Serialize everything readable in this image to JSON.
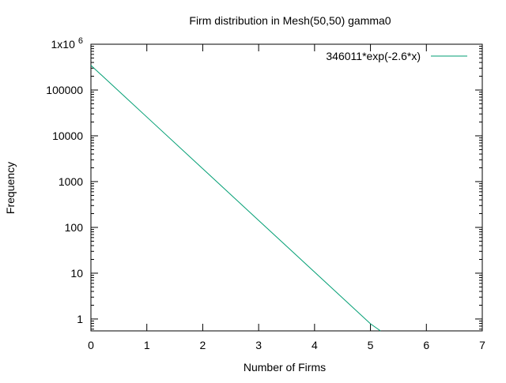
{
  "chart_data": {
    "type": "line",
    "title": "Firm distribution in Mesh(50,50) gamma0",
    "xlabel": "Number of Firms",
    "ylabel": "Frequency",
    "xscale": "linear",
    "yscale": "log",
    "xlim": [
      0,
      7
    ],
    "ylim": [
      0.55,
      1000000
    ],
    "x_ticks": [
      {
        "value": 0,
        "label": "0"
      },
      {
        "value": 1,
        "label": "1"
      },
      {
        "value": 2,
        "label": "2"
      },
      {
        "value": 3,
        "label": "3"
      },
      {
        "value": 4,
        "label": "4"
      },
      {
        "value": 5,
        "label": "5"
      },
      {
        "value": 6,
        "label": "6"
      },
      {
        "value": 7,
        "label": "7"
      }
    ],
    "y_ticks": [
      {
        "value": 1,
        "label": "1"
      },
      {
        "value": 10,
        "label": "10"
      },
      {
        "value": 100,
        "label": "100"
      },
      {
        "value": 1000,
        "label": "1000"
      },
      {
        "value": 10000,
        "label": "10000"
      },
      {
        "value": 100000,
        "label": "100000"
      },
      {
        "value": 1000000,
        "label": "1x10",
        "exponent": "6"
      }
    ],
    "grid": false,
    "legend_position": "top-right",
    "series": [
      {
        "name": "346011*exp(-2.6*x)",
        "color": "#009e73",
        "points": [
          [
            0,
            346011
          ],
          [
            1,
            25718
          ],
          [
            2,
            1912
          ],
          [
            3,
            142
          ],
          [
            4,
            10.6
          ],
          [
            5,
            0.786
          ],
          [
            5.18,
            0.55
          ]
        ]
      }
    ]
  }
}
